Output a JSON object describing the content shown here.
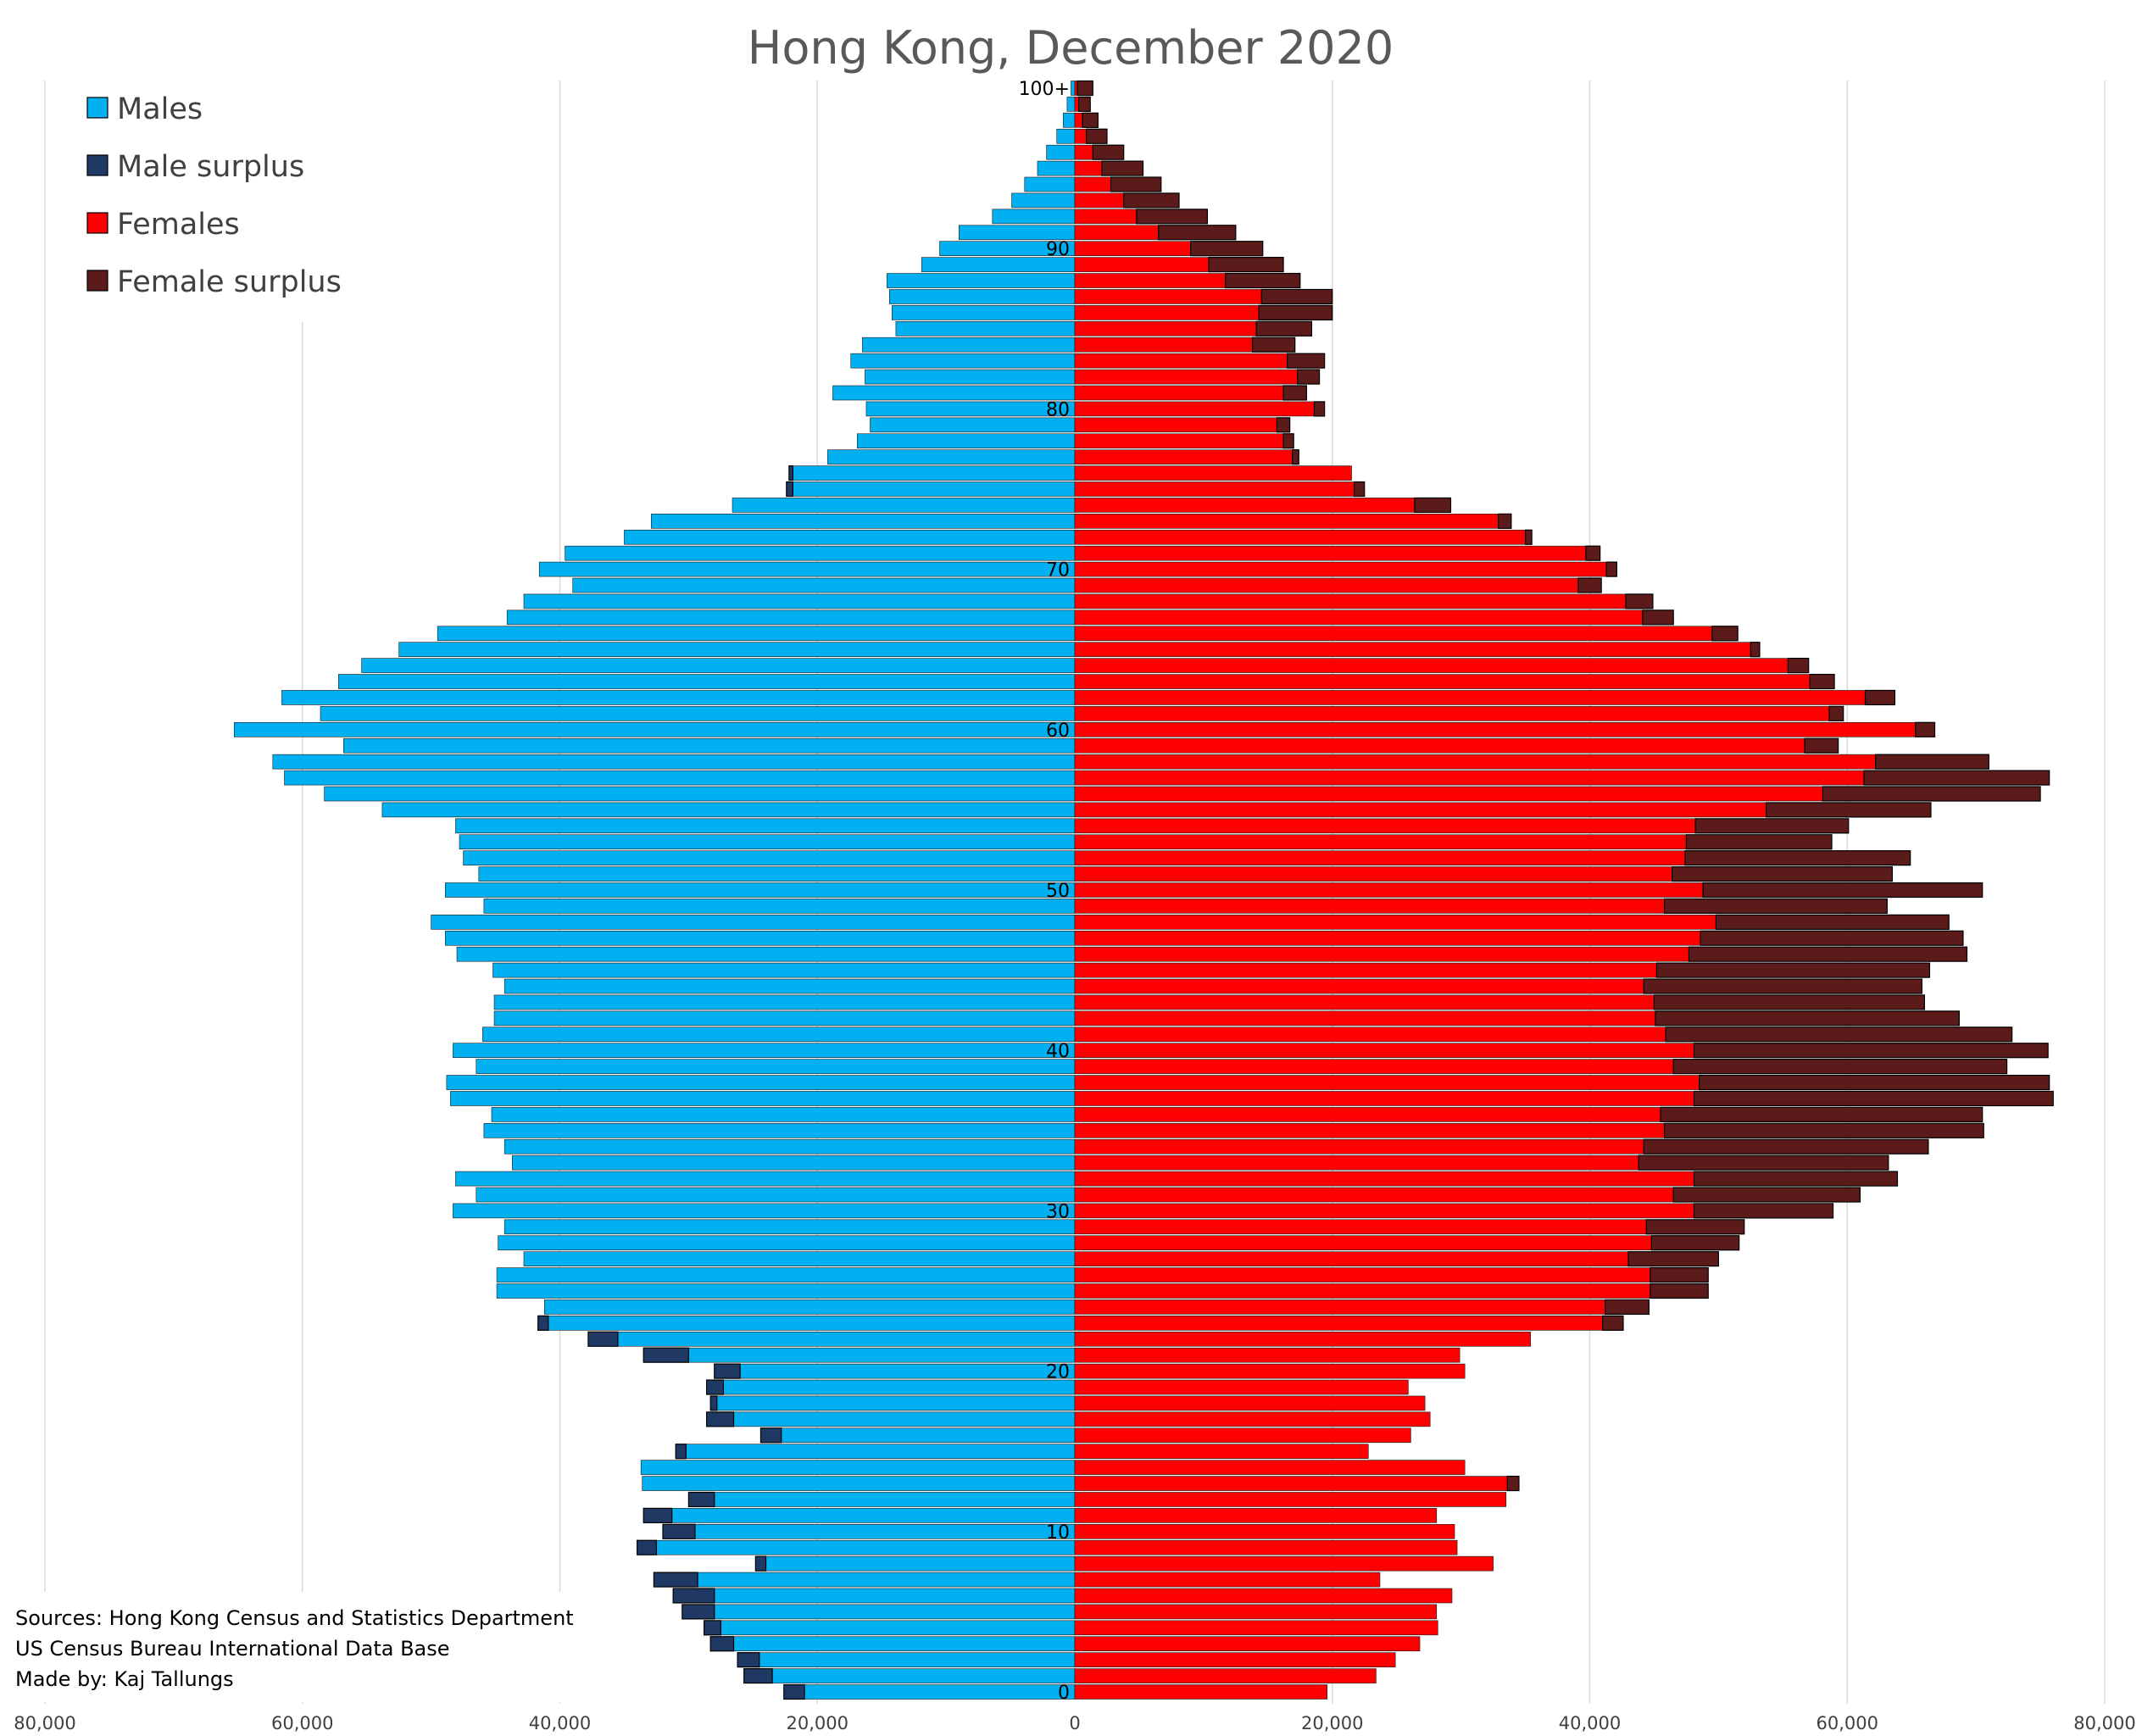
{
  "chart_data": {
    "type": "population-pyramid (horizontal stacked bar)",
    "title": "Hong Kong, December 2020",
    "x_axis": {
      "range": [
        -80000,
        80000
      ],
      "ticks": [
        -80000,
        -60000,
        -40000,
        -20000,
        0,
        20000,
        40000,
        60000,
        80000
      ],
      "tick_labels": [
        "80,000",
        "60,000",
        "40,000",
        "20,000",
        "0",
        "20,000",
        "40,000",
        "60,000",
        "80,000"
      ],
      "grid": true
    },
    "y_axis": {
      "ages": "0 to 100+, one bar per single year of age",
      "labels": [
        {
          "age": 0,
          "text": "0"
        },
        {
          "age": 10,
          "text": "10"
        },
        {
          "age": 20,
          "text": "20"
        },
        {
          "age": 30,
          "text": "30"
        },
        {
          "age": 40,
          "text": "40"
        },
        {
          "age": 50,
          "text": "50"
        },
        {
          "age": 60,
          "text": "60"
        },
        {
          "age": 70,
          "text": "70"
        },
        {
          "age": 80,
          "text": "80"
        },
        {
          "age": 90,
          "text": "90"
        },
        {
          "age": 100,
          "text": "100+"
        }
      ]
    },
    "legend": {
      "position": "top-left",
      "entries": [
        {
          "name": "Males",
          "color": "#00b0f0"
        },
        {
          "name": "Male surplus",
          "color": "#1f3864"
        },
        {
          "name": "Females",
          "color": "#ff0000"
        },
        {
          "name": "Female surplus",
          "color": "#5c1b1b"
        }
      ]
    },
    "series_note": "Males drawn to the left of 0, Females to the right; surplus segment = difference between the two sexes, drawn on the larger side.",
    "ages": [
      0,
      1,
      2,
      3,
      4,
      5,
      6,
      7,
      8,
      9,
      10,
      11,
      12,
      13,
      14,
      15,
      16,
      17,
      18,
      19,
      20,
      21,
      22,
      23,
      24,
      25,
      26,
      27,
      28,
      29,
      30,
      31,
      32,
      33,
      34,
      35,
      36,
      37,
      38,
      39,
      40,
      41,
      42,
      43,
      44,
      45,
      46,
      47,
      48,
      49,
      50,
      51,
      52,
      53,
      54,
      55,
      56,
      57,
      58,
      59,
      60,
      61,
      62,
      63,
      64,
      65,
      66,
      67,
      68,
      69,
      70,
      71,
      72,
      73,
      74,
      75,
      76,
      77,
      78,
      79,
      80,
      81,
      82,
      83,
      84,
      85,
      86,
      87,
      88,
      89,
      90,
      91,
      92,
      93,
      94,
      95,
      96,
      97,
      98,
      99,
      100
    ],
    "males": [
      21000,
      23500,
      24500,
      26500,
      27500,
      28000,
      28000,
      29300,
      24000,
      32500,
      29500,
      31300,
      28000,
      33600,
      33700,
      30200,
      22800,
      26500,
      27800,
      27300,
      26000,
      30000,
      35500,
      40900,
      41200,
      44900,
      44900,
      42800,
      44800,
      44300,
      48300,
      46500,
      48100,
      43700,
      44300,
      45900,
      45300,
      48500,
      48800,
      46500,
      48300,
      46000,
      45100,
      45100,
      44300,
      45200,
      48000,
      48900,
      50000,
      45900,
      48900,
      46300,
      47500,
      47800,
      48100,
      53800,
      58300,
      61400,
      62300,
      56800,
      65300,
      58600,
      61600,
      57200,
      55400,
      52500,
      49500,
      44100,
      42800,
      39000,
      41600,
      39600,
      35000,
      32900,
      26600,
      21900,
      21900,
      19200,
      16900,
      15900,
      16200,
      18800,
      16300,
      17400,
      16500,
      13900,
      14200,
      14400,
      14600,
      11900,
      10500,
      9000,
      6400,
      4900,
      3900,
      2900,
      2200,
      1400,
      900,
      600,
      300
    ],
    "male_surplus": [
      1600,
      2200,
      1700,
      1800,
      1300,
      2500,
      3200,
      3400,
      800,
      1500,
      2500,
      2200,
      2000,
      0,
      0,
      800,
      1600,
      2100,
      500,
      1300,
      2000,
      3500,
      2300,
      800,
      0,
      0,
      0,
      0,
      0,
      0,
      0,
      0,
      0,
      0,
      0,
      0,
      0,
      0,
      0,
      0,
      0,
      0,
      0,
      0,
      0,
      0,
      0,
      0,
      0,
      0,
      0,
      0,
      0,
      0,
      0,
      0,
      0,
      0,
      0,
      0,
      0,
      0,
      0,
      0,
      0,
      0,
      0,
      0,
      0,
      0,
      0,
      0,
      0,
      0,
      0,
      500,
      300,
      0,
      0,
      0,
      0,
      0,
      0,
      0,
      0,
      0,
      0,
      0,
      0,
      0,
      0,
      0,
      0,
      0,
      0,
      0,
      0,
      0,
      0,
      0,
      0
    ],
    "females": [
      19600,
      23400,
      24900,
      26800,
      28200,
      28100,
      29300,
      23700,
      32500,
      29700,
      29500,
      28100,
      33500,
      33600,
      30300,
      22800,
      26100,
      27600,
      27200,
      25900,
      30300,
      29900,
      35400,
      41000,
      41200,
      44700,
      44700,
      43000,
      44800,
      44400,
      48100,
      46500,
      48100,
      43800,
      44200,
      45800,
      45500,
      48100,
      48500,
      46500,
      48100,
      45900,
      45100,
      45000,
      44200,
      45200,
      47700,
      48600,
      49800,
      45800,
      48800,
      46400,
      47400,
      47500,
      48200,
      53700,
      58100,
      61300,
      62200,
      56700,
      65300,
      58600,
      61400,
      57100,
      55400,
      52500,
      49500,
      44100,
      42800,
      39100,
      41300,
      39700,
      35000,
      32900,
      26400,
      21700,
      21500,
      16900,
      16200,
      15700,
      18600,
      16200,
      17300,
      16500,
      13800,
      14100,
      14300,
      14500,
      11700,
      10400,
      9000,
      6500,
      4800,
      3800,
      2800,
      2100,
      1400,
      900,
      600,
      300,
      200
    ],
    "female_surplus": [
      0,
      0,
      0,
      0,
      0,
      0,
      0,
      0,
      0,
      0,
      0,
      0,
      0,
      900,
      0,
      0,
      0,
      0,
      0,
      0,
      0,
      0,
      0,
      1600,
      3400,
      4500,
      4500,
      7000,
      6800,
      7600,
      10800,
      14500,
      15800,
      19400,
      22100,
      24800,
      25000,
      27900,
      27200,
      25900,
      27500,
      26900,
      23600,
      21000,
      21600,
      21200,
      21600,
      20400,
      18100,
      17300,
      21700,
      17100,
      17500,
      11300,
      11900,
      12800,
      16900,
      14400,
      8800,
      2600,
      1500,
      1100,
      2300,
      1900,
      1600,
      700,
      2000,
      2400,
      2100,
      1800,
      800,
      1100,
      500,
      1000,
      2800,
      800,
      0,
      500,
      800,
      1000,
      800,
      1800,
      1700,
      2900,
      3300,
      4300,
      5700,
      5500,
      5800,
      5800,
      5600,
      6000,
      5500,
      4300,
      3900,
      3200,
      2400,
      1600,
      1200,
      900,
      1200
    ]
  },
  "sources": [
    "Sources: Hong Kong Census and Statistics Department",
    "US Census Bureau International Data Base",
    "Made by: Kaj Tallungs"
  ]
}
